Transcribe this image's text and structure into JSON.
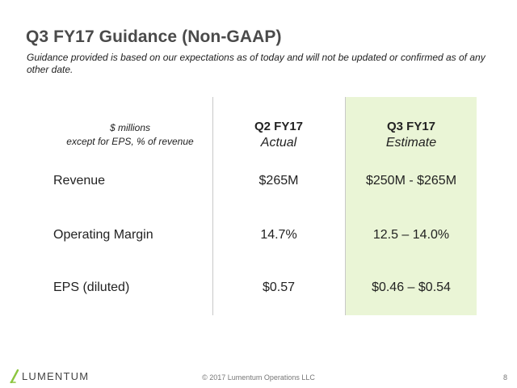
{
  "title": "Q3 FY17 Guidance (Non-GAAP)",
  "subtitle": "Guidance provided is based on our expectations as of today and will not be updated or confirmed as of any other date.",
  "table": {
    "units_line1": "$ millions",
    "units_line2": "except for EPS, % of revenue",
    "columns": [
      {
        "period": "Q2 FY17",
        "kind": "Actual"
      },
      {
        "period": "Q3 FY17",
        "kind": "Estimate"
      }
    ],
    "rows": [
      {
        "label": "Revenue",
        "actual": "$265M",
        "estimate": "$250M - $265M"
      },
      {
        "label": "Operating Margin",
        "actual": "14.7%",
        "estimate": "12.5 – 14.0%"
      },
      {
        "label": "EPS (diluted)",
        "actual": "$0.57",
        "estimate": "$0.46 – $0.54"
      }
    ]
  },
  "footer": {
    "logo_text": "LUMENTUM",
    "copyright": "© 2017 Lumentum Operations LLC",
    "page_number": "8"
  },
  "colors": {
    "estimate_highlight": "#eaf5d6",
    "logo_accent": "#8cc63f"
  }
}
